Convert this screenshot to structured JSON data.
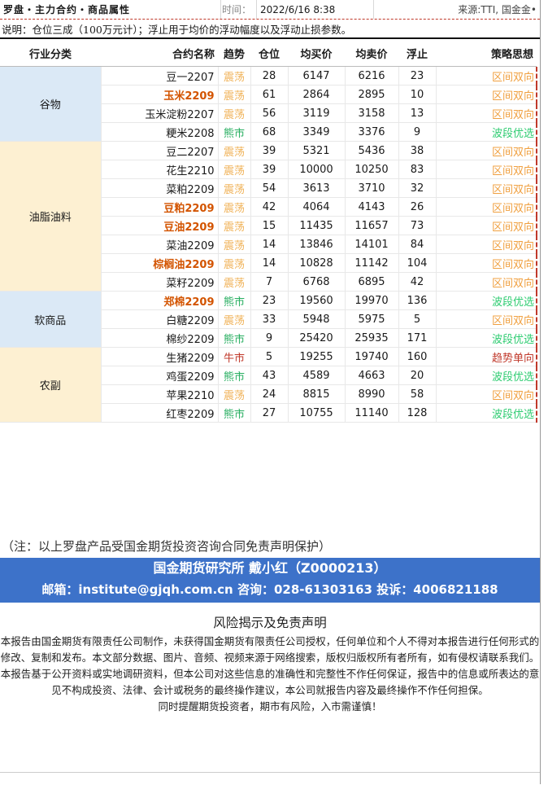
{
  "header": {
    "title": "罗盘・主力合约・商品属性",
    "time_label": "时间：",
    "time_value": "2022/6/16 8:38",
    "source": "来源:TTI, 国金金•"
  },
  "description": "说明：仓位三成（100万元计）；浮止用于均价的浮动幅度以及浮动止损参数。",
  "columns": [
    "行业分类",
    "合约名称",
    "趋势",
    "仓位",
    "均买价",
    "均卖价",
    "浮止",
    "策略思想"
  ],
  "groups": [
    {
      "category": "谷物",
      "rows": [
        {
          "name": "豆一2207",
          "trend": "震荡",
          "position": 28,
          "buy": 6147,
          "sell": 6216,
          "stop": 23,
          "strategy": "区间双向",
          "hl": false,
          "t": "osc",
          "s": "osc"
        },
        {
          "name": "玉米2209",
          "trend": "震荡",
          "position": 61,
          "buy": 2864,
          "sell": 2895,
          "stop": 10,
          "strategy": "区间双向",
          "hl": true,
          "t": "osc",
          "s": "osc"
        },
        {
          "name": "玉米淀粉2207",
          "trend": "震荡",
          "position": 56,
          "buy": 3119,
          "sell": 3158,
          "stop": 13,
          "strategy": "区间双向",
          "hl": false,
          "t": "osc",
          "s": "osc"
        },
        {
          "name": "粳米2208",
          "trend": "熊市",
          "position": 68,
          "buy": 3349,
          "sell": 3376,
          "stop": 9,
          "strategy": "波段优选",
          "hl": false,
          "t": "bear",
          "s": "band"
        }
      ]
    },
    {
      "category": "油脂油料",
      "rows": [
        {
          "name": "豆二2207",
          "trend": "震荡",
          "position": 39,
          "buy": 5321,
          "sell": 5436,
          "stop": 38,
          "strategy": "区间双向",
          "hl": false,
          "t": "osc",
          "s": "osc"
        },
        {
          "name": "花生2210",
          "trend": "震荡",
          "position": 39,
          "buy": 10000,
          "sell": 10250,
          "stop": 83,
          "strategy": "区间双向",
          "hl": false,
          "t": "osc",
          "s": "osc"
        },
        {
          "name": "菜粕2209",
          "trend": "震荡",
          "position": 54,
          "buy": 3613,
          "sell": 3710,
          "stop": 32,
          "strategy": "区间双向",
          "hl": false,
          "t": "osc",
          "s": "osc"
        },
        {
          "name": "豆粕2209",
          "trend": "震荡",
          "position": 42,
          "buy": 4064,
          "sell": 4143,
          "stop": 26,
          "strategy": "区间双向",
          "hl": true,
          "t": "osc",
          "s": "osc"
        },
        {
          "name": "豆油2209",
          "trend": "震荡",
          "position": 15,
          "buy": 11435,
          "sell": 11657,
          "stop": 73,
          "strategy": "区间双向",
          "hl": true,
          "t": "osc",
          "s": "osc"
        },
        {
          "name": "菜油2209",
          "trend": "震荡",
          "position": 14,
          "buy": 13846,
          "sell": 14101,
          "stop": 84,
          "strategy": "区间双向",
          "hl": false,
          "t": "osc",
          "s": "osc"
        },
        {
          "name": "棕榈油2209",
          "trend": "震荡",
          "position": 14,
          "buy": 10828,
          "sell": 11142,
          "stop": 104,
          "strategy": "区间双向",
          "hl": true,
          "t": "osc",
          "s": "osc"
        },
        {
          "name": "菜籽2209",
          "trend": "震荡",
          "position": 7,
          "buy": 6768,
          "sell": 6895,
          "stop": 42,
          "strategy": "区间双向",
          "hl": false,
          "t": "osc",
          "s": "osc"
        }
      ]
    },
    {
      "category": "软商品",
      "rows": [
        {
          "name": "郑棉2209",
          "trend": "熊市",
          "position": 23,
          "buy": 19560,
          "sell": 19970,
          "stop": 136,
          "strategy": "波段优选",
          "hl": true,
          "t": "bear",
          "s": "band"
        },
        {
          "name": "白糖2209",
          "trend": "震荡",
          "position": 33,
          "buy": 5948,
          "sell": 5975,
          "stop": 5,
          "strategy": "区间双向",
          "hl": false,
          "t": "osc",
          "s": "osc"
        },
        {
          "name": "棉纱2209",
          "trend": "熊市",
          "position": 9,
          "buy": 25420,
          "sell": 25935,
          "stop": 171,
          "strategy": "波段优选",
          "hl": false,
          "t": "bear",
          "s": "band"
        }
      ]
    },
    {
      "category": "农副",
      "rows": [
        {
          "name": "生猪2209",
          "trend": "牛市",
          "position": 5,
          "buy": 19255,
          "sell": 19740,
          "stop": 160,
          "strategy": "趋势单向",
          "hl": false,
          "t": "bull",
          "s": "trend"
        },
        {
          "name": "鸡蛋2209",
          "trend": "熊市",
          "position": 43,
          "buy": 4589,
          "sell": 4663,
          "stop": 20,
          "strategy": "波段优选",
          "hl": false,
          "t": "bear",
          "s": "band"
        },
        {
          "name": "苹果2210",
          "trend": "震荡",
          "position": 24,
          "buy": 8815,
          "sell": 8990,
          "stop": 58,
          "strategy": "区间双向",
          "hl": false,
          "t": "osc",
          "s": "osc"
        },
        {
          "name": "红枣2209",
          "trend": "熊市",
          "position": 27,
          "buy": 10755,
          "sell": 11140,
          "stop": 128,
          "strategy": "波段优选",
          "hl": false,
          "t": "bear",
          "s": "band"
        }
      ]
    }
  ],
  "category_colors": [
    "#dbe9f6",
    "#fdf0d2",
    "#dbe9f6",
    "#fdf0d2"
  ],
  "note": "（注：以上罗盘产品受国金期货投资咨询合同免责声明保护）",
  "banner": {
    "line1": "国金期货研究所   戴小红（Z0000213）",
    "line2": "邮箱：institute@gjqh.com.cn 咨询：028-61303163 投诉：4006821188"
  },
  "disclaimer": {
    "title": "风险揭示及免责声明",
    "p1": "本报告由国金期货有限责任公司制作，未获得国金期货有限责任公司授权，任何单位和个人不得对本报告进行任何形式的修改、复制和发布。本文部分数据、图片、音频、视频来源于网络搜索，版权归版权所有者所有，如有侵权请联系我们。",
    "p2": "本报告基于公开资料或实地调研资料，但本公司对这些信息的准确性和完整性不作任何保证，报告中的信息或所表达的意见不构成投资、法律、会计或税务的最终操作建议，本公司就报告内容及最终操作不作任何担保。",
    "p3": "同时提醒期货投资者，期市有风险，入市需谨慎！"
  }
}
